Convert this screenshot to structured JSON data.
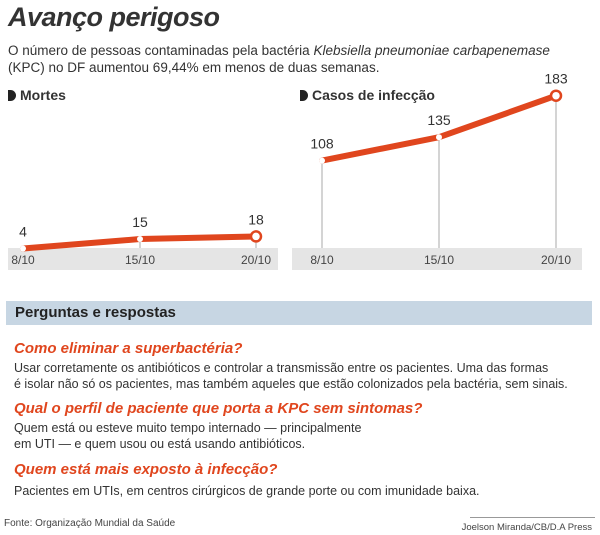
{
  "title": "Avanço perigoso",
  "intro": {
    "part1": "O número de pessoas contaminadas pela bactéria ",
    "italic": "Klebsiella pneumoniae carbapenemase",
    "part2": " (KPC) no DF aumentou 69,44% em menos de duas semanas."
  },
  "chart_data": [
    {
      "type": "line",
      "title": "Mortes",
      "categories": [
        "8/10",
        "15/10",
        "20/10"
      ],
      "values": [
        4,
        15,
        18
      ],
      "data_labels": [
        "4",
        "15",
        "18"
      ],
      "ylim": [
        0,
        183
      ]
    },
    {
      "type": "line",
      "title": "Casos de infecção",
      "categories": [
        "8/10",
        "15/10",
        "20/10"
      ],
      "values": [
        108,
        135,
        183
      ],
      "data_labels": [
        "108",
        "135",
        "183"
      ],
      "ylim": [
        0,
        183
      ]
    }
  ],
  "qa": {
    "header": "Perguntas e respostas",
    "items": [
      {
        "question": "Como eliminar a superbactéria?",
        "answer_lines": [
          "Usar corretamente os antibióticos e controlar a transmissão entre os pacientes. Uma das formas",
          "é isolar não só os pacientes, mas também aqueles que estão colonizados pela bactéria, sem sinais."
        ]
      },
      {
        "question": "Qual o perfil de paciente que porta a KPC sem sintomas?",
        "answer_lines": [
          "Quem está ou esteve muito tempo internado — principalmente",
          "em UTI — e quem usou ou está usando antibióticos."
        ]
      },
      {
        "question": "Quem está mais exposto à infecção?",
        "answer_lines": [
          "Pacientes em UTIs, em centros cirúrgicos de grande porte ou com imunidade baixa."
        ]
      }
    ]
  },
  "source": "Fonte: Organização Mundial da Saúde",
  "credit": "Joelson Miranda/CB/D.A Press",
  "colors": {
    "line": "#e0461e",
    "axis_band": "#e5e5e5",
    "qa_header_bg": "#c7d6e3",
    "question": "#e0461e"
  }
}
